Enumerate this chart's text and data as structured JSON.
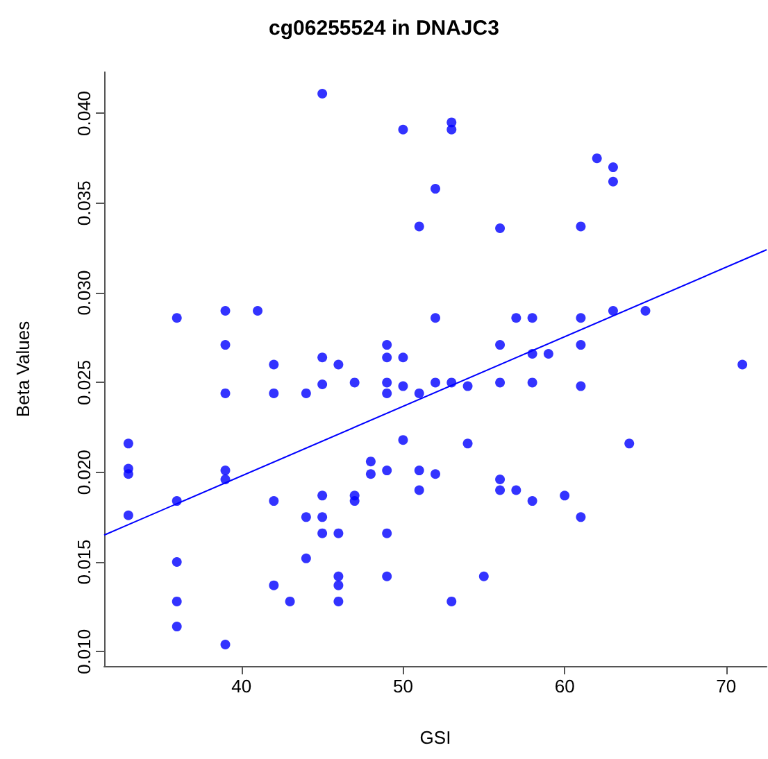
{
  "chart_data": {
    "type": "scatter",
    "title": "cg06255524 in DNAJC3",
    "xlabel": "GSI",
    "ylabel": "Beta Values",
    "xlim": [
      31.5,
      72.5
    ],
    "ylim": [
      0.0092,
      0.0423
    ],
    "xticks": [
      40,
      50,
      60,
      70
    ],
    "yticks": [
      {
        "value": 0.01,
        "label": "0.010"
      },
      {
        "value": 0.015,
        "label": "0.015"
      },
      {
        "value": 0.02,
        "label": "0.020"
      },
      {
        "value": 0.025,
        "label": "0.025"
      },
      {
        "value": 0.03,
        "label": "0.030"
      },
      {
        "value": 0.035,
        "label": "0.035"
      },
      {
        "value": 0.04,
        "label": "0.040"
      }
    ],
    "grid": false,
    "marker": "circle",
    "series": [
      {
        "color": "#0000ff",
        "x": [
          45,
          50,
          51,
          36,
          39,
          41,
          39,
          42,
          45,
          46,
          49,
          49,
          50,
          47,
          49,
          45,
          50,
          53,
          53,
          62,
          63,
          63,
          52,
          56,
          61,
          52,
          57,
          58,
          61,
          63,
          65,
          56,
          58,
          59,
          61,
          71,
          52,
          53,
          54,
          56,
          58,
          61,
          39,
          42,
          44,
          49,
          51,
          33,
          33,
          33,
          33,
          36,
          39,
          39,
          42,
          45,
          44,
          45,
          45,
          46,
          47,
          47,
          48,
          48,
          49,
          50,
          51,
          51,
          49,
          36,
          36,
          36,
          39,
          42,
          43,
          44,
          46,
          46,
          46,
          49,
          54,
          64,
          52,
          56,
          56,
          57,
          58,
          60,
          61,
          55,
          53
        ],
        "values": [
          0.0411,
          0.0391,
          0.0337,
          0.0286,
          0.029,
          0.029,
          0.0271,
          0.026,
          0.0264,
          0.026,
          0.0271,
          0.0264,
          0.0264,
          0.025,
          0.025,
          0.0249,
          0.0248,
          0.0395,
          0.0391,
          0.0375,
          0.037,
          0.0362,
          0.0358,
          0.0336,
          0.0337,
          0.0286,
          0.0286,
          0.0286,
          0.0286,
          0.029,
          0.029,
          0.0271,
          0.0266,
          0.0266,
          0.0271,
          0.026,
          0.025,
          0.025,
          0.0248,
          0.025,
          0.025,
          0.0248,
          0.0244,
          0.0244,
          0.0244,
          0.0244,
          0.0244,
          0.0216,
          0.0202,
          0.0199,
          0.0176,
          0.0184,
          0.0201,
          0.0196,
          0.0184,
          0.0187,
          0.0175,
          0.0175,
          0.0166,
          0.0166,
          0.0187,
          0.0184,
          0.0206,
          0.0199,
          0.0201,
          0.0218,
          0.0201,
          0.019,
          0.0166,
          0.015,
          0.0128,
          0.0114,
          0.0104,
          0.0137,
          0.0128,
          0.0152,
          0.0142,
          0.0137,
          0.0128,
          0.0142,
          0.0216,
          0.0216,
          0.0199,
          0.0196,
          0.019,
          0.019,
          0.0184,
          0.0187,
          0.0175,
          0.0142,
          0.0128
        ]
      },
      {
        "type": "line",
        "color": "#0000ff",
        "line_style": "solid",
        "marker": "none",
        "x": [
          31.5,
          72.5
        ],
        "values": [
          0.0165,
          0.0324
        ]
      }
    ]
  }
}
